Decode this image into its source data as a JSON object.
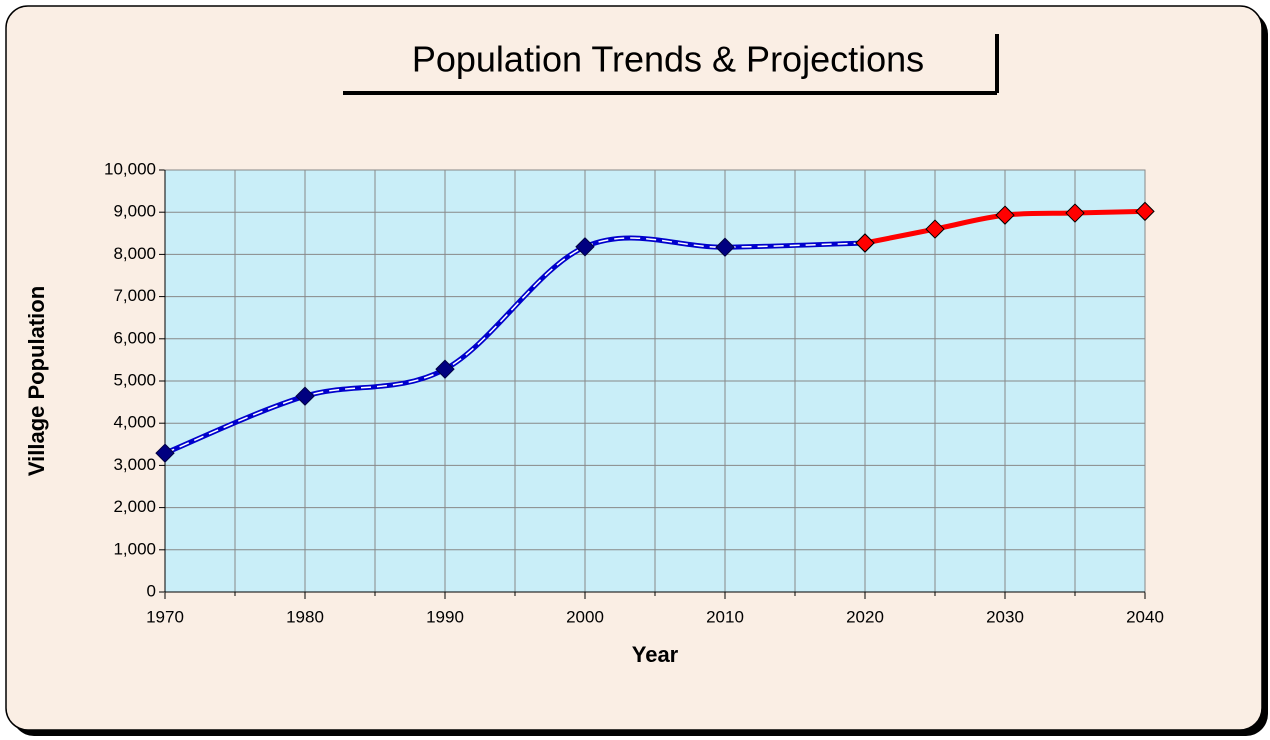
{
  "chart_data": {
    "type": "line",
    "title": "Population Trends & Projections",
    "x_label": "Year",
    "y_label": "Village Population",
    "x": [
      1970,
      1980,
      1990,
      2000,
      2010,
      2020,
      2025,
      2030,
      2035,
      2040
    ],
    "series": [
      {
        "color": "#0000cc",
        "marker_color": "#000080",
        "values": [
          3290,
          4640,
          5280,
          8180,
          8170,
          8270,
          null,
          null,
          null,
          null
        ]
      },
      {
        "color": "#ff0000",
        "marker_color": "#ff0000",
        "values": [
          null,
          null,
          null,
          null,
          null,
          8270,
          8600,
          8930,
          8980,
          9020
        ]
      }
    ],
    "xlim": [
      1970,
      2040
    ],
    "xticks": [
      1970,
      1980,
      1990,
      2000,
      2010,
      2020,
      2030,
      2040
    ],
    "x_minor_ticks": [
      1975,
      1985,
      1995,
      2005,
      2015,
      2025,
      2035
    ],
    "ylim": [
      0,
      10000
    ],
    "yticks": [
      {
        "value": 0,
        "label": "0"
      },
      {
        "value": 1000,
        "label": "1,000"
      },
      {
        "value": 2000,
        "label": "2,000"
      },
      {
        "value": 3000,
        "label": "3,000"
      },
      {
        "value": 4000,
        "label": "4,000"
      },
      {
        "value": 5000,
        "label": "5,000"
      },
      {
        "value": 6000,
        "label": "6,000"
      },
      {
        "value": 7000,
        "label": "7,000"
      },
      {
        "value": 8000,
        "label": "8,000"
      },
      {
        "value": 9000,
        "label": "9,000"
      },
      {
        "value": 10000,
        "label": "10,000"
      }
    ],
    "grid": true,
    "smooth": true
  }
}
